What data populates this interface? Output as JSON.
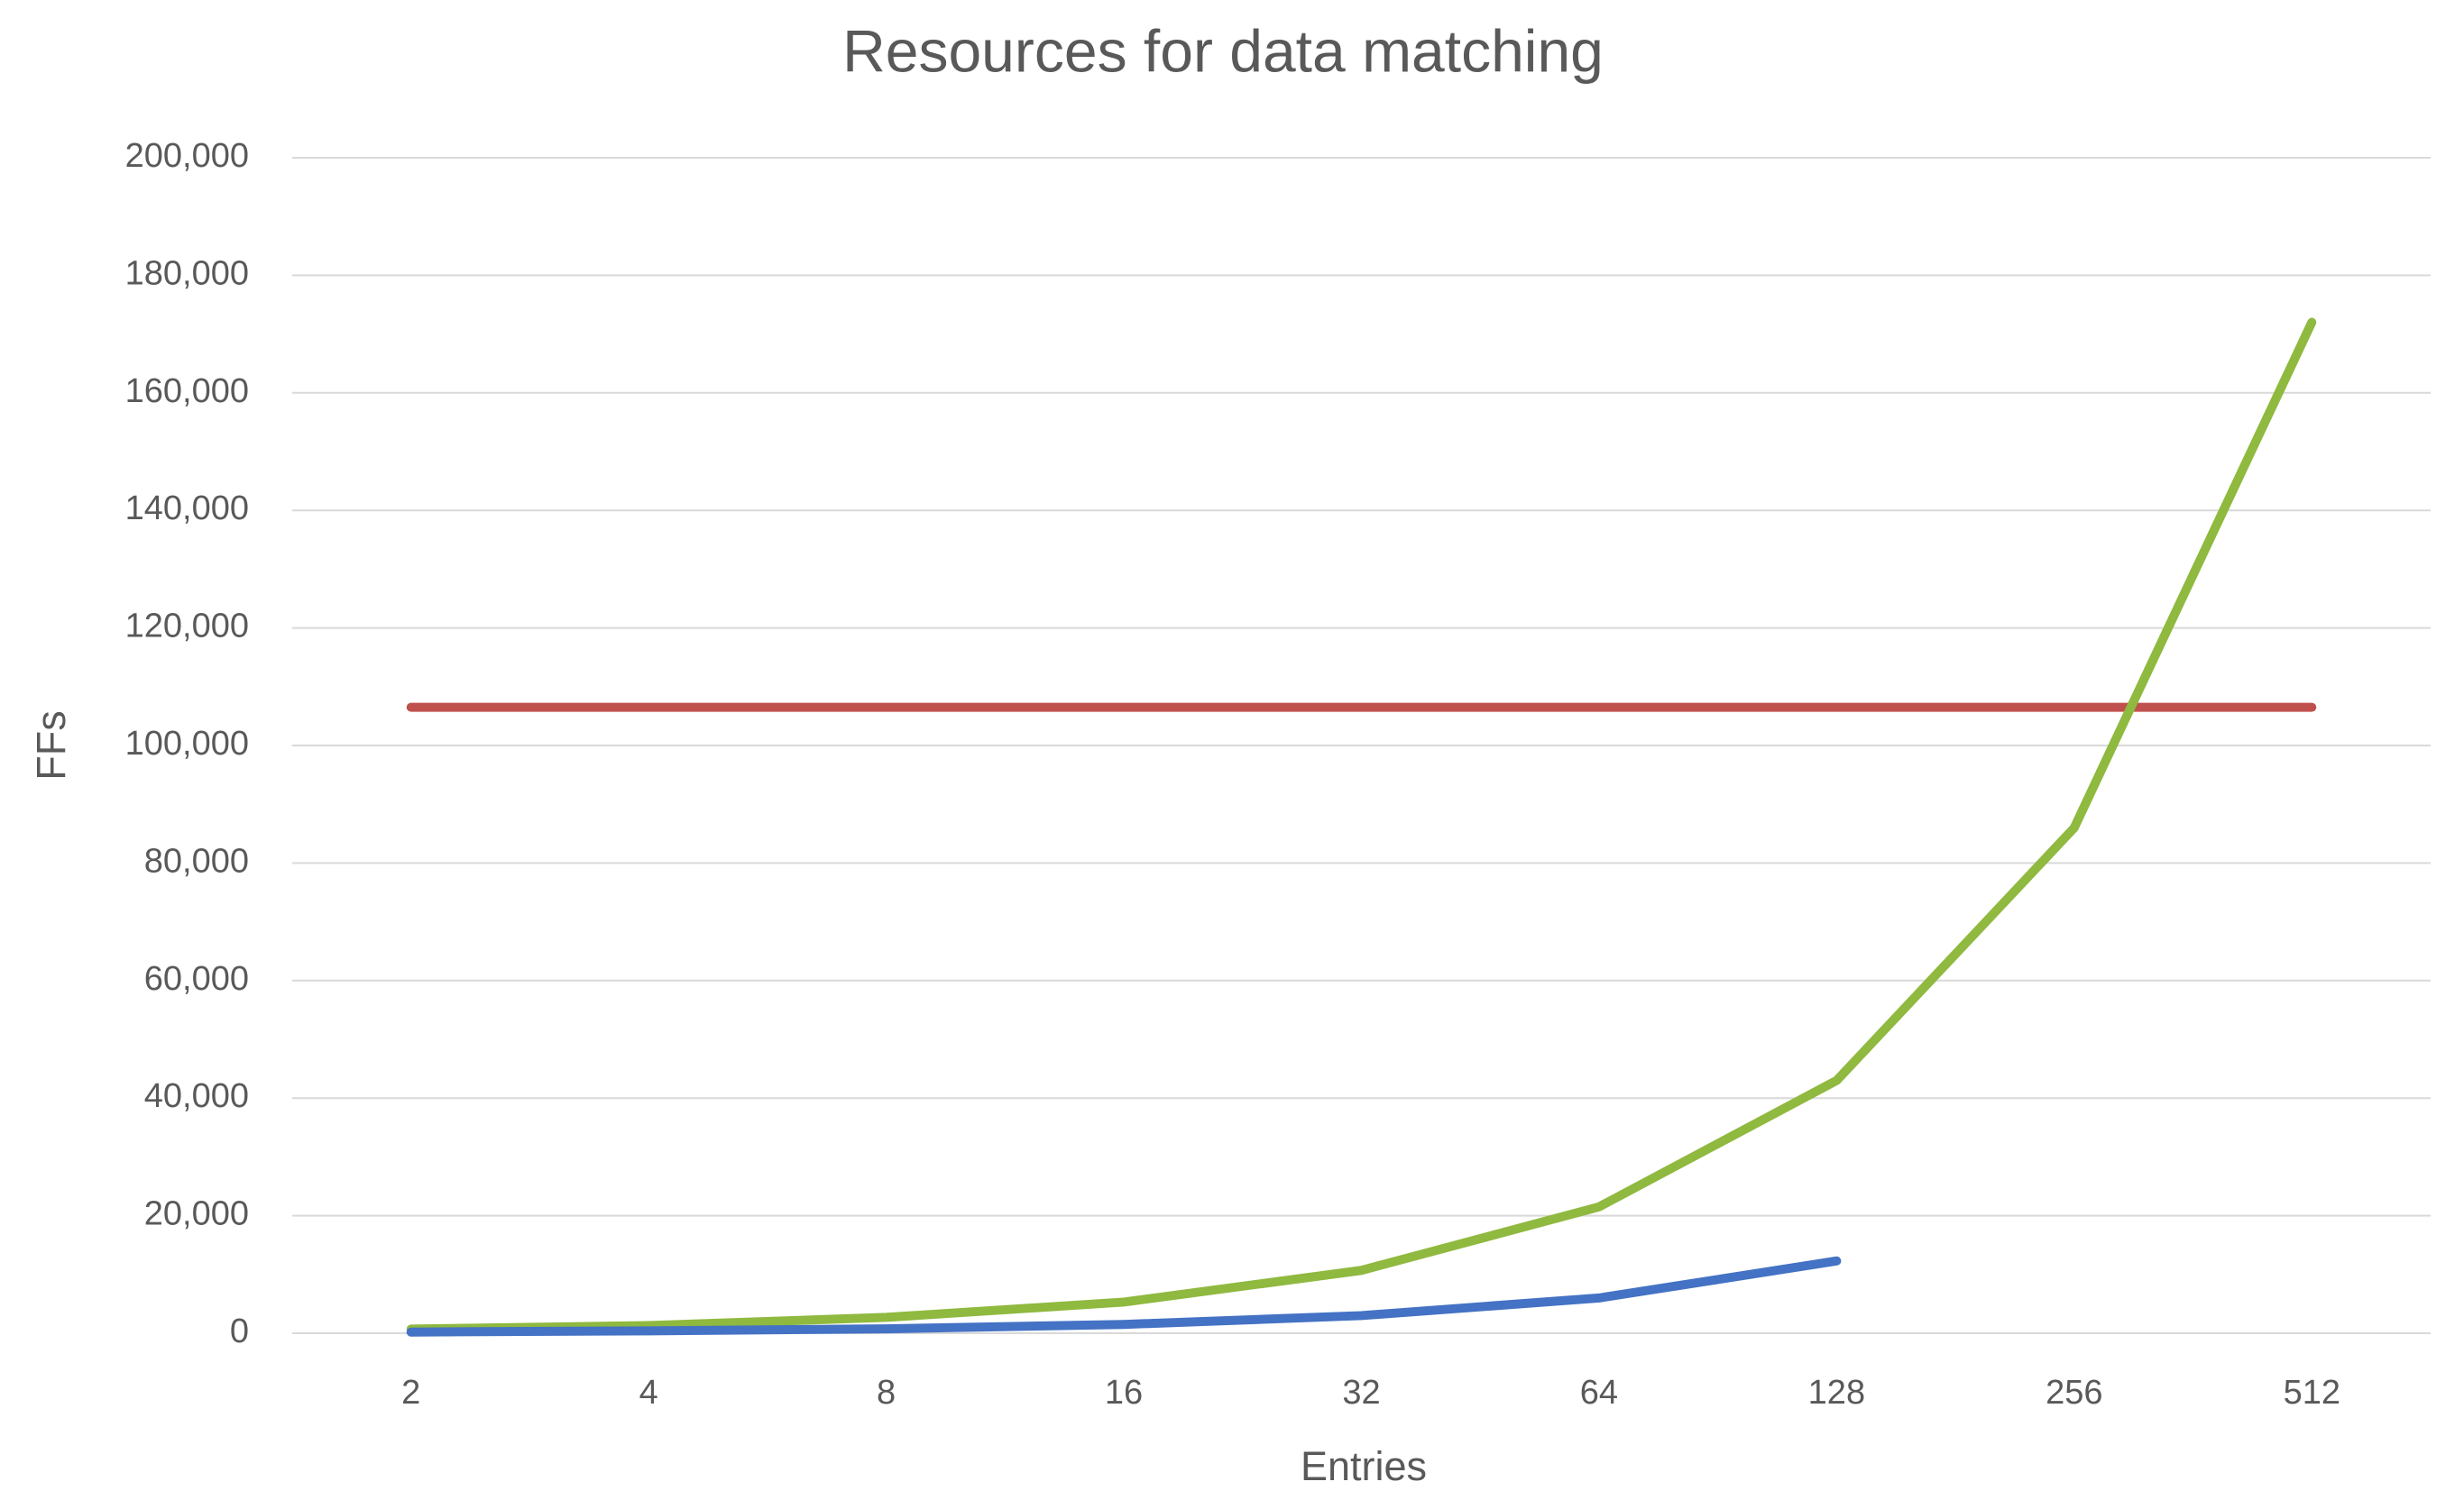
{
  "chart_data": {
    "type": "line",
    "title": "Resources for data matching",
    "x_label": "Entries",
    "y_label": "FFs",
    "categories": [
      "2",
      "4",
      "8",
      "16",
      "32",
      "64",
      "128",
      "256",
      "512"
    ],
    "series": [
      {
        "color": "#c0504d",
        "values": [
          106500,
          106500,
          106500,
          106500,
          106500,
          106500,
          106500,
          106500,
          106500
        ]
      },
      {
        "color": "#8fb93f",
        "values": [
          700,
          1300,
          2700,
          5300,
          10700,
          21500,
          43000,
          86000,
          172000
        ]
      },
      {
        "color": "#4472c4",
        "values": [
          200,
          400,
          750,
          1500,
          3000,
          6000,
          12300,
          null,
          null
        ]
      }
    ],
    "ylim": [
      0,
      200000
    ],
    "yticks": [
      0,
      {
        "value": 20000,
        "label": "20,000"
      },
      {
        "value": 40000,
        "label": "40,000"
      },
      {
        "value": 60000,
        "label": "60,000"
      },
      {
        "value": 80000,
        "label": "80,000"
      },
      {
        "value": 100000,
        "label": "100,000"
      },
      {
        "value": 120000,
        "label": "120,000"
      },
      {
        "value": 140000,
        "label": "140,000"
      },
      {
        "value": 160000,
        "label": "160,000"
      },
      {
        "value": 180000,
        "label": "180,000"
      },
      {
        "value": 200000,
        "label": "200,000"
      }
    ],
    "grid": true
  }
}
